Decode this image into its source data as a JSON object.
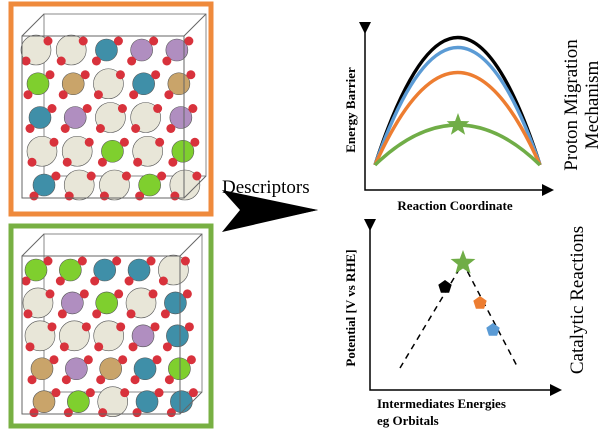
{
  "arrow_label": "Descriptors",
  "top_panel": {
    "y_label": "Energy Barrier",
    "x_label": "Reaction Coordinate",
    "side_label_lines": [
      "Proton Migration",
      "Mechanism"
    ]
  },
  "bottom_panel": {
    "y_label": "Potential [V vs RHE]",
    "x_label_lines": [
      "Intermediates Energies",
      "eg Orbitals"
    ],
    "side_label": "Catalytic Reactions"
  }
}
